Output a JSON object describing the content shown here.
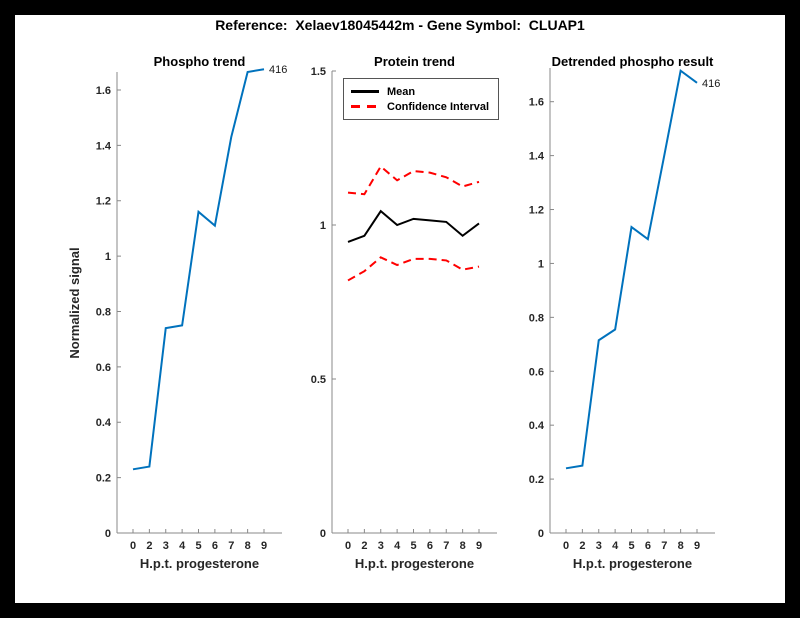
{
  "figure": {
    "title": "Reference:  Xelaev18045442m - Gene Symbol:  CLUAP1",
    "border_color": "#000000",
    "canvas_color": "#ffffff",
    "axis_color": "#888888"
  },
  "chart_data": [
    {
      "type": "line",
      "name": "phospho-trend",
      "title": "Phospho trend",
      "xlabel": "H.p.t. progesterone",
      "ylabel": "Normalized signal",
      "x_tick_labels": [
        "0",
        "2",
        "3",
        "4",
        "5",
        "6",
        "7",
        "8",
        "9"
      ],
      "y_ticks": [
        0,
        0.2,
        0.4,
        0.6,
        0.8,
        1,
        1.2,
        1.4,
        1.6
      ],
      "y_tick_labels": [
        "0",
        "0.2",
        "0.4",
        "0.6",
        "0.8",
        "1",
        "1.2",
        "1.4",
        "1.6"
      ],
      "ylim": [
        0,
        1.665
      ],
      "grid": false,
      "series": [
        {
          "name": "phospho-trend-line",
          "color": "#0072BD",
          "style": "solid",
          "width": 2,
          "values": [
            0.23,
            0.24,
            0.74,
            0.75,
            1.16,
            1.11,
            1.43,
            1.665,
            1.675
          ]
        }
      ],
      "annotation": {
        "text": "416",
        "at_index": 8
      }
    },
    {
      "type": "line",
      "name": "protein-trend",
      "title": "Protein trend",
      "xlabel": "H.p.t. progesterone",
      "ylabel": "",
      "x_tick_labels": [
        "0",
        "2",
        "3",
        "4",
        "5",
        "6",
        "7",
        "8",
        "9"
      ],
      "y_ticks": [
        0,
        0.5,
        1,
        1.5
      ],
      "y_tick_labels": [
        "0",
        "0.5",
        "1",
        "1.5"
      ],
      "ylim": [
        0,
        1.5
      ],
      "grid": false,
      "legend": {
        "position": "northwest",
        "entries": [
          {
            "label": "Mean",
            "color": "#000000",
            "style": "solid"
          },
          {
            "label": "Confidence Interval",
            "color": "#FF0000",
            "style": "dashed"
          }
        ]
      },
      "series": [
        {
          "name": "mean-line",
          "color": "#000000",
          "style": "solid",
          "width": 2,
          "values": [
            0.945,
            0.965,
            1.045,
            1.0,
            1.02,
            1.015,
            1.01,
            0.965,
            1.005
          ]
        },
        {
          "name": "ci-upper-line",
          "color": "#FF0000",
          "style": "dashed",
          "width": 2,
          "values": [
            1.105,
            1.1,
            1.19,
            1.145,
            1.175,
            1.17,
            1.155,
            1.125,
            1.14
          ]
        },
        {
          "name": "ci-lower-line",
          "color": "#FF0000",
          "style": "dashed",
          "width": 2,
          "values": [
            0.82,
            0.85,
            0.895,
            0.87,
            0.89,
            0.89,
            0.885,
            0.855,
            0.865
          ]
        }
      ]
    },
    {
      "type": "line",
      "name": "detrended-phospho",
      "title": "Detrended phospho result",
      "xlabel": "H.p.t. progesterone",
      "ylabel": "",
      "x_tick_labels": [
        "0",
        "2",
        "3",
        "4",
        "5",
        "6",
        "7",
        "8",
        "9"
      ],
      "y_ticks": [
        0,
        0.2,
        0.4,
        0.6,
        0.8,
        1,
        1.2,
        1.4,
        1.6
      ],
      "y_tick_labels": [
        "0",
        "0.2",
        "0.4",
        "0.6",
        "0.8",
        "1",
        "1.2",
        "1.4",
        "1.6"
      ],
      "ylim": [
        0,
        1.725
      ],
      "grid": false,
      "series": [
        {
          "name": "detrended-phospho-line",
          "color": "#0072BD",
          "style": "solid",
          "width": 2,
          "values": [
            0.24,
            0.25,
            0.715,
            0.755,
            1.135,
            1.09,
            1.4,
            1.715,
            1.67
          ]
        }
      ],
      "annotation": {
        "text": "416",
        "at_index": 8
      }
    }
  ]
}
